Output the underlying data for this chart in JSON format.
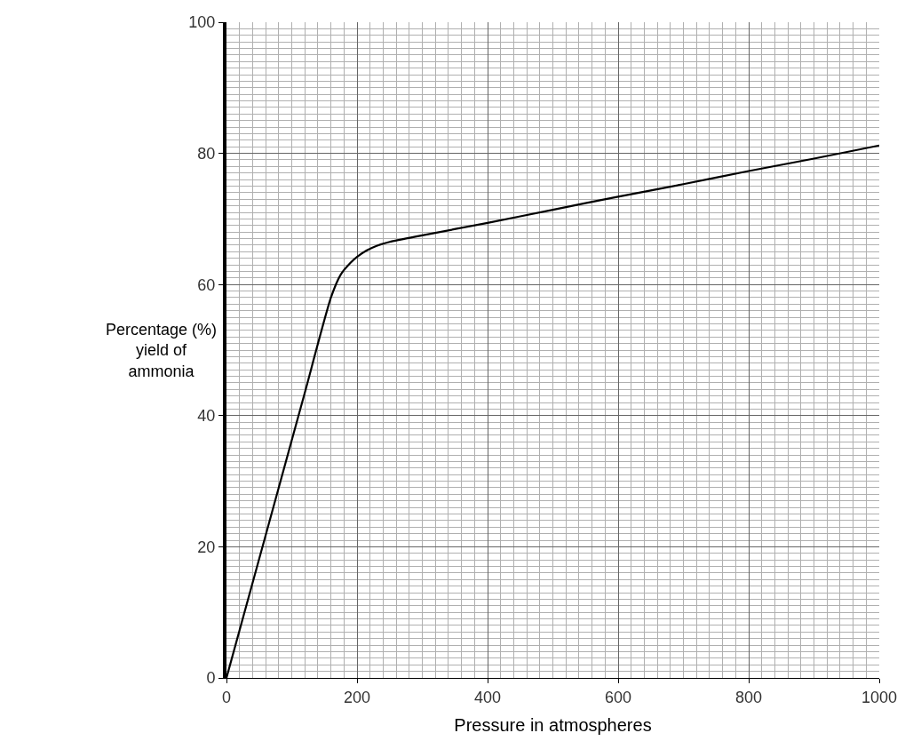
{
  "chart_data": {
    "type": "line",
    "xlabel": "Pressure in atmospheres",
    "ylabel": "Percentage (%)\nyield of\nammonia",
    "x": [
      0,
      40,
      80,
      120,
      160,
      175,
      190,
      200,
      215,
      230,
      250,
      300,
      400,
      500,
      600,
      700,
      800,
      900,
      1000
    ],
    "series": [
      {
        "color": "#000000",
        "values": [
          0,
          14.5,
          29,
          43.5,
          58,
          61.5,
          63.3,
          64.2,
          65.2,
          65.9,
          66.5,
          67.5,
          69.4,
          71.4,
          73.4,
          75.3,
          77.3,
          79.2,
          81.2
        ]
      }
    ],
    "xlim": [
      0,
      1000
    ],
    "ylim": [
      0,
      100
    ],
    "xticks": [
      0,
      200,
      400,
      600,
      800,
      1000
    ],
    "yticks": [
      0,
      20,
      40,
      60,
      80,
      100
    ],
    "grid": true,
    "marker": "none",
    "line_style": "solid"
  }
}
